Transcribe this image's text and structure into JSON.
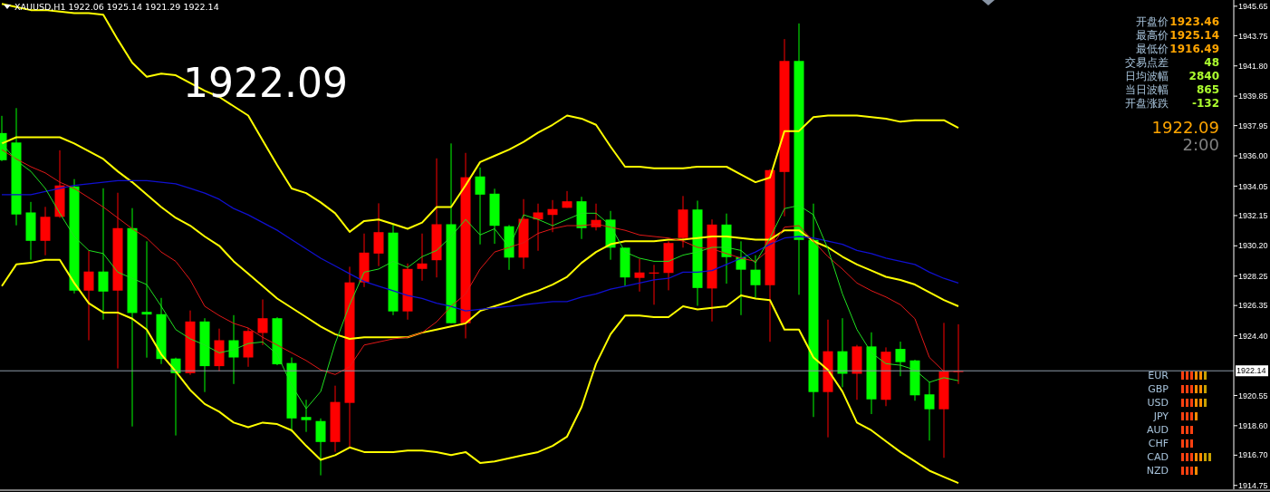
{
  "chart_data": {
    "type": "candlestick",
    "title": "XAUUSD,H1  1922.06 1925.14 1921.29 1922.14",
    "annotations": [
      "1922.09",
      "开盘价",
      "1923.46",
      "最高价",
      "1925.14",
      "最低价",
      "1916.49",
      "交易点差",
      "48",
      "日均波幅",
      "2840",
      "当日波幅",
      "865",
      "开盘涨跌",
      "-132",
      "1922.09",
      "2:00",
      "EUR",
      "GBP",
      "USD",
      "JPY",
      "AUD",
      "CHF",
      "CAD",
      "NZD"
    ],
    "categories": [
      null,
      null,
      null,
      null,
      null,
      null,
      null,
      null,
      null,
      null,
      null,
      null,
      null,
      null,
      null,
      null,
      null,
      null,
      null,
      null,
      null,
      null,
      null,
      null,
      null,
      null,
      null,
      null,
      null,
      null,
      null,
      null,
      null,
      null,
      null,
      null,
      null,
      null,
      null,
      null,
      null,
      null,
      null,
      null,
      null,
      null,
      null,
      null,
      null,
      null,
      null,
      null,
      null,
      null,
      null,
      null,
      null,
      null,
      null,
      null,
      null,
      null,
      null,
      null,
      null,
      null,
      null
    ],
    "ohlc": [
      [
        1937.47,
        1938.58,
        1935.66,
        1935.72
      ],
      [
        1936.86,
        1939.08,
        1931.52,
        1932.22
      ],
      [
        1932.35,
        1933.03,
        1929.3,
        1930.52
      ],
      [
        1930.52,
        1932.71,
        1929.59,
        1932.07
      ],
      [
        1932.07,
        1936.36,
        1932.0,
        1934.09
      ],
      [
        1934.03,
        1934.5,
        1927.13,
        1927.31
      ],
      [
        1927.31,
        1929.88,
        1924.11,
        1928.54
      ],
      [
        1928.54,
        1933.91,
        1925.44,
        1927.25
      ],
      [
        1927.31,
        1933.62,
        1922.29,
        1931.34
      ],
      [
        1931.34,
        1932.63,
        1918.55,
        1925.87
      ],
      [
        1925.94,
        1930.49,
        1922.99,
        1925.77
      ],
      [
        1925.79,
        1926.84,
        1922.58,
        1922.9
      ],
      [
        1922.93,
        1922.99,
        1917.97,
        1921.99
      ],
      [
        1921.99,
        1926.03,
        1921.88,
        1925.32
      ],
      [
        1925.32,
        1925.53,
        1920.77,
        1922.44
      ],
      [
        1922.44,
        1924.86,
        1922.11,
        1924.11
      ],
      [
        1924.11,
        1925.73,
        1921.29,
        1923.0
      ],
      [
        1923.0,
        1924.9,
        1922.4,
        1924.71
      ],
      [
        1924.58,
        1926.74,
        1923.8,
        1925.53
      ],
      [
        1925.53,
        1925.6,
        1922.5,
        1922.56
      ],
      [
        1922.64,
        1923.0,
        1918.2,
        1919.07
      ],
      [
        1919.16,
        1920.27,
        1918.2,
        1918.96
      ],
      [
        1918.9,
        1919.07,
        1915.4,
        1917.55
      ],
      [
        1917.55,
        1921.18,
        1916.91,
        1920.13
      ],
      [
        1920.07,
        1928.85,
        1917.2,
        1927.84
      ],
      [
        1927.84,
        1930.99,
        1927.54,
        1929.76
      ],
      [
        1929.7,
        1932.94,
        1928.89,
        1931.08
      ],
      [
        1931.05,
        1931.59,
        1925.73,
        1925.97
      ],
      [
        1925.97,
        1929.06,
        1925.44,
        1928.71
      ],
      [
        1928.71,
        1930.99,
        1927.95,
        1929.06
      ],
      [
        1929.27,
        1935.84,
        1928.16,
        1931.59
      ],
      [
        1931.59,
        1936.8,
        1925.21,
        1925.21
      ],
      [
        1925.21,
        1936.19,
        1924.23,
        1934.62
      ],
      [
        1934.67,
        1935.25,
        1930.29,
        1933.5
      ],
      [
        1933.56,
        1933.88,
        1930.33,
        1931.49
      ],
      [
        1931.46,
        1931.54,
        1928.65,
        1929.44
      ],
      [
        1929.44,
        1933.21,
        1928.71,
        1931.94
      ],
      [
        1931.9,
        1932.92,
        1929.88,
        1932.35
      ],
      [
        1932.19,
        1933.15,
        1931.08,
        1932.57
      ],
      [
        1932.65,
        1933.73,
        1932.65,
        1933.07
      ],
      [
        1933.07,
        1933.36,
        1930.64,
        1931.34
      ],
      [
        1931.4,
        1932.92,
        1931.19,
        1931.87
      ],
      [
        1931.89,
        1932.45,
        1929.3,
        1930.08
      ],
      [
        1930.08,
        1930.08,
        1927.6,
        1928.16
      ],
      [
        1928.13,
        1929.36,
        1927.25,
        1928.48
      ],
      [
        1928.41,
        1928.97,
        1926.4,
        1928.48
      ],
      [
        1928.45,
        1930.49,
        1927.33,
        1930.38
      ],
      [
        1930.7,
        1933.41,
        1930.08,
        1932.54
      ],
      [
        1932.54,
        1933.11,
        1926.33,
        1927.48
      ],
      [
        1927.45,
        1931.9,
        1925.32,
        1931.57
      ],
      [
        1931.57,
        1932.28,
        1927.76,
        1929.47
      ],
      [
        1929.47,
        1930.49,
        1925.73,
        1928.66
      ],
      [
        1928.66,
        1929.59,
        1926.84,
        1927.66
      ],
      [
        1927.66,
        1935.14,
        1924.01,
        1935.08
      ],
      [
        1934.96,
        1943.53,
        1932.1,
        1942.12
      ],
      [
        1942.12,
        1944.54,
        1927.04,
        1930.58
      ],
      [
        1930.58,
        1932.92,
        1919.16,
        1920.77
      ],
      [
        1920.77,
        1925.44,
        1917.85,
        1923.4
      ],
      [
        1923.4,
        1925.53,
        1921.08,
        1921.95
      ],
      [
        1921.95,
        1923.81,
        1920.27,
        1923.71
      ],
      [
        1923.71,
        1924.62,
        1919.35,
        1920.3
      ],
      [
        1920.27,
        1923.65,
        1919.86,
        1923.37
      ],
      [
        1923.55,
        1924.02,
        1921.79,
        1922.7
      ],
      [
        1922.81,
        1922.85,
        1920.21,
        1920.56
      ],
      [
        1920.62,
        1921.39,
        1917.64,
        1919.66
      ],
      [
        1919.66,
        1925.23,
        1916.53,
        1922.09
      ],
      [
        1922.06,
        1925.14,
        1921.29,
        1922.14
      ]
    ],
    "colors": [
      "#00ff00",
      "#00ff00",
      "#00ff00",
      "#ff0000",
      "#ff0000",
      "#00ff00",
      "#ff0000",
      "#00ff00",
      "#ff0000",
      "#00ff00",
      "#00ff00",
      "#00ff00",
      "#00ff00",
      "#ff0000",
      "#00ff00",
      "#ff0000",
      "#00ff00",
      "#ff0000",
      "#ff0000",
      "#00ff00",
      "#00ff00",
      "#00ff00",
      "#00ff00",
      "#ff0000",
      "#ff0000",
      "#ff0000",
      "#ff0000",
      "#00ff00",
      "#ff0000",
      "#ff0000",
      "#ff0000",
      "#00ff00",
      "#ff0000",
      "#00ff00",
      "#00ff00",
      "#00ff00",
      "#ff0000",
      "#ff0000",
      "#ff0000",
      "#ff0000",
      "#00ff00",
      "#ff0000",
      "#00ff00",
      "#00ff00",
      "#ff0000",
      "#ff0000",
      "#ff0000",
      "#ff0000",
      "#00ff00",
      "#ff0000",
      "#00ff00",
      "#00ff00",
      "#00ff00",
      "#ff0000",
      "#ff0000",
      "#00ff00",
      "#00ff00",
      "#ff0000",
      "#00ff00",
      "#ff0000",
      "#00ff00",
      "#ff0000",
      "#00ff00",
      "#00ff00",
      "#00ff00",
      "#ff0000",
      "#ff0000"
    ],
    "series": [
      {
        "type": "line",
        "color": "#ffff00",
        "values": [
          1945.8,
          1945.6,
          1945.4,
          1945.4,
          1945.3,
          1945.2,
          1945.2,
          1945.1,
          1943.5,
          1942.0,
          1941.1,
          1941.3,
          1941.2,
          1940.7,
          1940.2,
          1939.8,
          1939.2,
          1938.6,
          1937.0,
          1935.4,
          1933.9,
          1933.6,
          1933.0,
          1932.3,
          1931.1,
          1931.8,
          1931.9,
          1931.6,
          1931.3,
          1931.7,
          1932.7,
          1932.7,
          1934.1,
          1935.6,
          1936.0,
          1936.4,
          1936.9,
          1937.5,
          1938.0,
          1938.6,
          1938.4,
          1938.0,
          1936.6,
          1935.3,
          1935.3,
          1935.2,
          1935.2,
          1935.2,
          1935.3,
          1935.3,
          1935.3,
          1934.8,
          1934.3,
          1934.6,
          1937.6,
          1937.6,
          1938.5,
          1938.6,
          1938.6,
          1938.6,
          1938.5,
          1938.4,
          1938.2,
          1938.3,
          1938.3,
          1938.3,
          1937.8
        ]
      },
      {
        "type": "line",
        "color": "#ffff00",
        "values": [
          1936.8,
          1937.2,
          1937.2,
          1937.2,
          1937.2,
          1936.8,
          1936.3,
          1935.8,
          1935.0,
          1934.3,
          1933.5,
          1932.7,
          1932.0,
          1931.5,
          1930.8,
          1930.2,
          1929.2,
          1928.4,
          1927.6,
          1926.8,
          1926.2,
          1925.6,
          1925.0,
          1924.5,
          1924.2,
          1924.3,
          1924.3,
          1924.3,
          1924.3,
          1924.6,
          1924.8,
          1925.0,
          1925.2,
          1926.0,
          1926.3,
          1926.6,
          1927.0,
          1927.3,
          1927.7,
          1928.2,
          1929.1,
          1929.8,
          1930.3,
          1930.5,
          1930.5,
          1930.5,
          1930.6,
          1930.6,
          1930.7,
          1930.8,
          1930.8,
          1930.7,
          1930.6,
          1930.6,
          1931.2,
          1931.2,
          1930.5,
          1930.1,
          1929.5,
          1929.0,
          1928.6,
          1928.2,
          1928.0,
          1927.7,
          1927.2,
          1926.7,
          1926.3
        ]
      },
      {
        "type": "line",
        "color": "#ffff00",
        "values": [
          1927.6,
          1929.0,
          1929.1,
          1929.3,
          1929.3,
          1927.8,
          1926.5,
          1925.9,
          1925.9,
          1925.5,
          1924.8,
          1923.2,
          1922.1,
          1920.9,
          1920.0,
          1919.5,
          1918.8,
          1918.5,
          1918.8,
          1918.7,
          1918.3,
          1917.3,
          1916.4,
          1916.7,
          1917.2,
          1916.9,
          1916.9,
          1916.9,
          1917.0,
          1917.0,
          1916.9,
          1916.7,
          1916.9,
          1916.2,
          1916.3,
          1916.5,
          1916.7,
          1916.9,
          1917.3,
          1917.9,
          1919.8,
          1922.6,
          1924.5,
          1925.7,
          1925.7,
          1925.6,
          1925.6,
          1926.3,
          1926.1,
          1926.2,
          1926.3,
          1927.0,
          1926.8,
          1926.7,
          1924.8,
          1924.8,
          1923.0,
          1922.2,
          1920.8,
          1918.8,
          1918.3,
          1917.6,
          1916.9,
          1916.3,
          1915.7,
          1915.3,
          1914.9
        ]
      },
      {
        "type": "line",
        "color": "#1010d0",
        "values": [
          1933.5,
          1933.5,
          1933.5,
          1933.7,
          1933.9,
          1934.1,
          1934.2,
          1934.3,
          1934.4,
          1934.4,
          1934.4,
          1934.3,
          1934.2,
          1933.9,
          1933.6,
          1933.2,
          1932.6,
          1932.2,
          1931.7,
          1931.2,
          1930.6,
          1930.0,
          1929.4,
          1928.9,
          1928.4,
          1927.9,
          1927.6,
          1927.3,
          1927.0,
          1926.8,
          1926.5,
          1926.3,
          1926.0,
          1926.1,
          1926.2,
          1926.3,
          1926.4,
          1926.5,
          1926.6,
          1926.6,
          1926.9,
          1927.1,
          1927.4,
          1927.6,
          1927.8,
          1928.0,
          1928.1,
          1928.5,
          1928.5,
          1928.6,
          1929.0,
          1929.4,
          1929.8,
          1930.3,
          1930.7,
          1930.8,
          1930.7,
          1930.5,
          1930.3,
          1929.9,
          1929.7,
          1929.4,
          1929.2,
          1929.0,
          1928.5,
          1928.1,
          1927.8
        ]
      },
      {
        "type": "line",
        "color": "#e01818",
        "values": [
          1936.4,
          1935.8,
          1935.3,
          1934.9,
          1934.3,
          1933.9,
          1933.3,
          1932.7,
          1932.0,
          1931.3,
          1930.7,
          1929.8,
          1929.2,
          1928.0,
          1926.3,
          1925.7,
          1925.2,
          1924.9,
          1924.3,
          1923.8,
          1923.3,
          1922.8,
          1922.2,
          1921.9,
          1922.4,
          1923.8,
          1924.0,
          1924.2,
          1924.3,
          1924.6,
          1925.3,
          1926.3,
          1927.1,
          1928.7,
          1929.8,
          1930.1,
          1930.4,
          1931.0,
          1931.3,
          1931.5,
          1931.5,
          1931.6,
          1931.4,
          1931.2,
          1930.9,
          1930.8,
          1930.7,
          1930.5,
          1930.1,
          1930.0,
          1929.7,
          1929.4,
          1929.2,
          1930.0,
          1931.4,
          1931.5,
          1930.5,
          1929.5,
          1928.7,
          1927.8,
          1927.3,
          1926.9,
          1926.4,
          1925.5,
          1923.0,
          1922.1,
          1922.1
        ]
      },
      {
        "type": "line",
        "color": "#20e020",
        "values": [
          1936.8,
          1935.7,
          1935.0,
          1933.9,
          1932.3,
          1930.8,
          1929.9,
          1929.7,
          1928.5,
          1928.1,
          1927.7,
          1926.3,
          1924.8,
          1924.2,
          1923.8,
          1923.3,
          1923.5,
          1923.9,
          1924.0,
          1923.2,
          1921.2,
          1919.7,
          1920.8,
          1923.9,
          1926.4,
          1928.5,
          1928.7,
          1929.2,
          1928.8,
          1929.5,
          1929.9,
          1930.8,
          1931.9,
          1930.9,
          1931.3,
          1930.1,
          1932.2,
          1931.9,
          1931.5,
          1931.9,
          1932.3,
          1932.3,
          1931.5,
          1929.8,
          1929.4,
          1929.2,
          1929.2,
          1929.6,
          1929.8,
          1930.1,
          1930.1,
          1929.9,
          1929.1,
          1930.7,
          1932.6,
          1932.8,
          1932.2,
          1930.0,
          1927.1,
          1924.8,
          1923.3,
          1922.6,
          1922.5,
          1922.2,
          1921.4,
          1921.7,
          1921.5
        ]
      }
    ],
    "ylim": [
      1914.5,
      1946.05
    ],
    "yticks": [
      1945.65,
      1943.75,
      {
        "value": 1941.8,
        "label": "1941.80"
      },
      1939.85,
      1937.95,
      {
        "value": 1936,
        "label": "1936.00"
      },
      1934.05,
      1932.15,
      {
        "value": 1930.2,
        "label": "1930.20"
      },
      1928.25,
      1926.35,
      {
        "value": 1924.4,
        "label": "1924.40"
      },
      1920.55,
      {
        "value": 1918.6,
        "label": "1918.60"
      },
      {
        "value": 1916.7,
        "label": "1916.70"
      },
      1914.75
    ],
    "ref_lines": [
      {
        "axis": "y",
        "value": 1922.14,
        "label": "1922.14",
        "color": "#8c9aa8"
      }
    ],
    "tick_labels": "y"
  }
}
